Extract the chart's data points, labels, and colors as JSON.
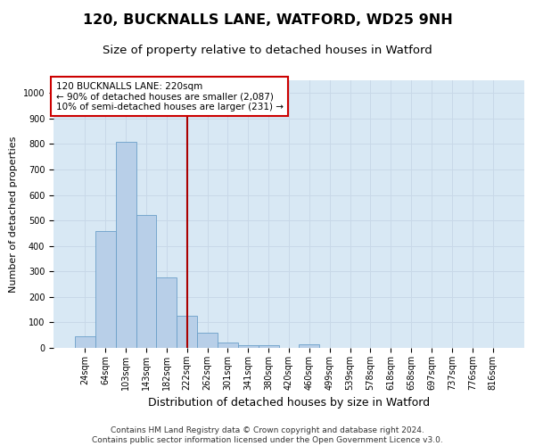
{
  "title": "120, BUCKNALLS LANE, WATFORD, WD25 9NH",
  "subtitle": "Size of property relative to detached houses in Watford",
  "xlabel": "Distribution of detached houses by size in Watford",
  "ylabel": "Number of detached properties",
  "categories": [
    "24sqm",
    "64sqm",
    "103sqm",
    "143sqm",
    "182sqm",
    "222sqm",
    "262sqm",
    "301sqm",
    "341sqm",
    "380sqm",
    "420sqm",
    "460sqm",
    "499sqm",
    "539sqm",
    "578sqm",
    "618sqm",
    "658sqm",
    "697sqm",
    "737sqm",
    "776sqm",
    "816sqm"
  ],
  "bar_heights": [
    47,
    460,
    810,
    520,
    275,
    125,
    60,
    20,
    12,
    12,
    0,
    15,
    0,
    0,
    0,
    0,
    0,
    0,
    0,
    0,
    0
  ],
  "bar_color": "#b8cfe8",
  "bar_edge_color": "#6a9fc8",
  "vline_x": 5,
  "vline_label": "120 BUCKNALLS LANE: 220sqm",
  "annotation_line1": "← 90% of detached houses are smaller (2,087)",
  "annotation_line2": "10% of semi-detached houses are larger (231) →",
  "annotation_box_color": "#ffffff",
  "annotation_box_edge": "#cc0000",
  "vline_color": "#aa0000",
  "ylim": [
    0,
    1050
  ],
  "yticks": [
    0,
    100,
    200,
    300,
    400,
    500,
    600,
    700,
    800,
    900,
    1000
  ],
  "grid_color": "#c8d8e8",
  "background_color": "#d8e8f4",
  "footer_line1": "Contains HM Land Registry data © Crown copyright and database right 2024.",
  "footer_line2": "Contains public sector information licensed under the Open Government Licence v3.0.",
  "title_fontsize": 11.5,
  "subtitle_fontsize": 9.5,
  "xlabel_fontsize": 9,
  "ylabel_fontsize": 8,
  "tick_fontsize": 7,
  "footer_fontsize": 6.5,
  "annot_fontsize": 7.5
}
